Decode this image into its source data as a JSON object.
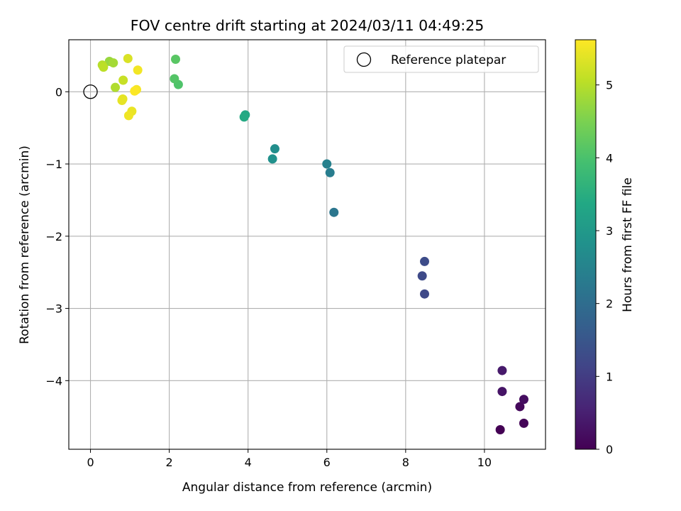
{
  "chart_data": {
    "type": "scatter",
    "title": "FOV centre drift starting at 2024/03/11 04:49:25",
    "xlabel": "Angular distance from reference (arcmin)",
    "ylabel": "Rotation from reference (arcmin)",
    "xlim": [
      -0.55,
      11.55
    ],
    "ylim": [
      -4.95,
      0.72
    ],
    "xticks": [
      0,
      2,
      4,
      6,
      8,
      10
    ],
    "yticks": [
      0,
      -1,
      -2,
      -3,
      -4
    ],
    "xtick_labels": [
      "0",
      "2",
      "4",
      "6",
      "8",
      "10"
    ],
    "ytick_labels": [
      "0",
      "−1",
      "−2",
      "−3",
      "−4"
    ],
    "grid": true,
    "colormap": "viridis",
    "colorbar": {
      "label": "Hours from first FF file",
      "range": [
        0,
        5.62
      ],
      "ticks": [
        0,
        1,
        2,
        3,
        4,
        5
      ],
      "tick_labels": [
        "0",
        "1",
        "2",
        "3",
        "4",
        "5"
      ]
    },
    "reference": {
      "label": "Reference platepar",
      "x": 0,
      "y": 0
    },
    "legend_position": "top-right",
    "points": [
      {
        "x": 10.4,
        "y": -4.68,
        "h": 0.0
      },
      {
        "x": 11.0,
        "y": -4.59,
        "h": 0.05
      },
      {
        "x": 10.9,
        "y": -4.36,
        "h": 0.12
      },
      {
        "x": 11.0,
        "y": -4.26,
        "h": 0.2
      },
      {
        "x": 10.45,
        "y": -4.15,
        "h": 0.3
      },
      {
        "x": 10.45,
        "y": -3.86,
        "h": 0.4
      },
      {
        "x": 8.48,
        "y": -2.8,
        "h": 1.22
      },
      {
        "x": 8.42,
        "y": -2.55,
        "h": 1.25
      },
      {
        "x": 8.48,
        "y": -2.35,
        "h": 1.3
      },
      {
        "x": 6.18,
        "y": -1.67,
        "h": 2.2
      },
      {
        "x": 6.08,
        "y": -1.12,
        "h": 2.35
      },
      {
        "x": 6.0,
        "y": -1.0,
        "h": 2.45
      },
      {
        "x": 4.68,
        "y": -0.79,
        "h": 2.75
      },
      {
        "x": 4.62,
        "y": -0.93,
        "h": 2.8
      },
      {
        "x": 3.93,
        "y": -0.32,
        "h": 3.35
      },
      {
        "x": 3.9,
        "y": -0.35,
        "h": 3.4
      },
      {
        "x": 2.23,
        "y": 0.1,
        "h": 4.05
      },
      {
        "x": 2.13,
        "y": 0.18,
        "h": 4.1
      },
      {
        "x": 2.16,
        "y": 0.45,
        "h": 4.15
      },
      {
        "x": 0.48,
        "y": 0.42,
        "h": 4.75
      },
      {
        "x": 0.58,
        "y": 0.4,
        "h": 4.85
      },
      {
        "x": 0.63,
        "y": 0.06,
        "h": 4.95
      },
      {
        "x": 0.3,
        "y": 0.37,
        "h": 5.0
      },
      {
        "x": 0.33,
        "y": 0.34,
        "h": 5.05
      },
      {
        "x": 0.83,
        "y": 0.16,
        "h": 5.15
      },
      {
        "x": 0.95,
        "y": 0.46,
        "h": 5.3
      },
      {
        "x": 0.82,
        "y": -0.1,
        "h": 5.4
      },
      {
        "x": 0.8,
        "y": -0.12,
        "h": 5.42
      },
      {
        "x": 1.05,
        "y": -0.27,
        "h": 5.45
      },
      {
        "x": 0.97,
        "y": -0.33,
        "h": 5.5
      },
      {
        "x": 1.2,
        "y": 0.3,
        "h": 5.52
      },
      {
        "x": 1.17,
        "y": 0.03,
        "h": 5.55
      },
      {
        "x": 1.12,
        "y": 0.01,
        "h": 5.6
      }
    ]
  }
}
